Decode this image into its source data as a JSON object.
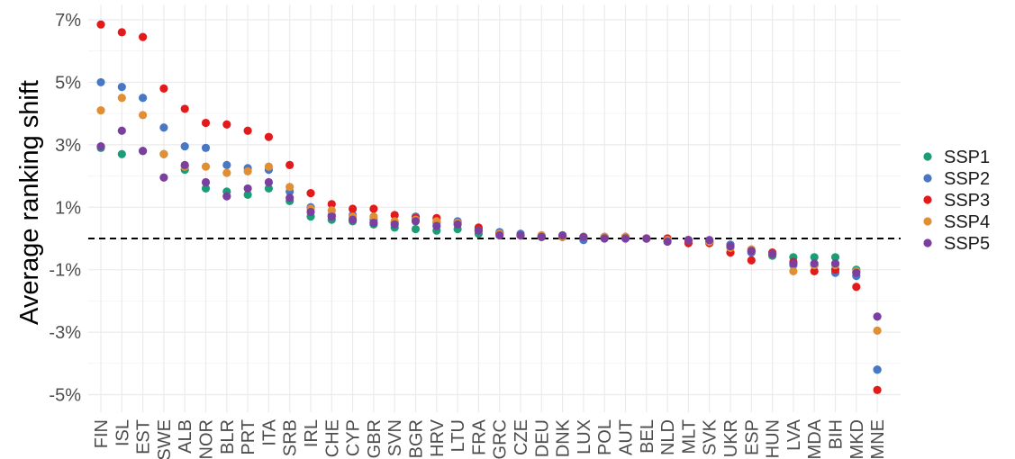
{
  "chart_data": {
    "type": "scatter",
    "title": "",
    "xlabel": "",
    "ylabel": "Average ranking shift",
    "ylim": [
      -5.6,
      7.0
    ],
    "yticks": [
      "7%",
      "5%",
      "3%",
      "1%",
      "-1%",
      "-3%",
      "-5%"
    ],
    "ytick_values": [
      7,
      5,
      3,
      1,
      -1,
      -3,
      -5
    ],
    "grid": true,
    "reference_line": {
      "y": 0,
      "style": "dashed"
    },
    "legend_position": "right",
    "categories": [
      "FIN",
      "ISL",
      "EST",
      "SWE",
      "ALB",
      "NOR",
      "BLR",
      "PRT",
      "ITA",
      "SRB",
      "IRL",
      "CHE",
      "CYP",
      "GBR",
      "SVN",
      "BGR",
      "HRV",
      "LTU",
      "FRA",
      "GRC",
      "CZE",
      "DEU",
      "DNK",
      "LUX",
      "POL",
      "AUT",
      "BEL",
      "NLD",
      "MLT",
      "SVK",
      "UKR",
      "ESP",
      "HUN",
      "LVA",
      "MDA",
      "BIH",
      "MKD",
      "MNE"
    ],
    "series": [
      {
        "name": "SSP1",
        "color": "#1b9e77",
        "values": [
          2.9,
          2.7,
          2.8,
          2.7,
          2.2,
          1.6,
          1.5,
          1.4,
          1.6,
          1.2,
          0.7,
          0.6,
          0.55,
          0.45,
          0.35,
          0.3,
          0.25,
          0.3,
          0.15,
          0.2,
          0.1,
          0.05,
          0.05,
          0.05,
          0.05,
          0.05,
          0.0,
          0.0,
          -0.05,
          -0.1,
          -0.2,
          -0.4,
          -0.55,
          -0.6,
          -0.6,
          -0.6,
          -1.0,
          -4.2
        ]
      },
      {
        "name": "SSP2",
        "color": "#4a77c4",
        "values": [
          5.0,
          4.85,
          4.5,
          3.55,
          2.95,
          2.9,
          2.35,
          2.25,
          2.2,
          1.5,
          1.0,
          0.75,
          0.75,
          0.6,
          0.5,
          0.7,
          0.5,
          0.55,
          0.3,
          0.2,
          0.15,
          0.1,
          0.1,
          -0.05,
          0.05,
          0.05,
          0.0,
          -0.05,
          -0.05,
          -0.1,
          -0.2,
          -0.45,
          -0.5,
          -0.85,
          -0.85,
          -1.1,
          -1.2,
          -4.2
        ]
      },
      {
        "name": "SSP3",
        "color": "#e31a1c",
        "values": [
          6.85,
          6.6,
          6.45,
          4.8,
          4.15,
          3.7,
          3.65,
          3.45,
          3.25,
          2.35,
          1.45,
          1.1,
          0.95,
          0.95,
          0.75,
          0.65,
          0.65,
          0.5,
          0.35,
          0.15,
          0.1,
          0.05,
          0.05,
          0.05,
          0.05,
          0.05,
          0.0,
          0.0,
          -0.15,
          -0.15,
          -0.45,
          -0.7,
          -0.45,
          -0.75,
          -1.05,
          -1.0,
          -1.55,
          -4.85
        ]
      },
      {
        "name": "SSP4",
        "color": "#e08f35",
        "values": [
          4.1,
          4.5,
          3.95,
          2.7,
          2.3,
          2.3,
          2.1,
          2.15,
          2.3,
          1.65,
          0.95,
          0.9,
          0.7,
          0.7,
          0.55,
          0.6,
          0.55,
          0.5,
          0.25,
          0.15,
          0.1,
          0.1,
          0.05,
          0.05,
          0.05,
          0.05,
          0.0,
          -0.05,
          -0.05,
          -0.1,
          -0.3,
          -0.35,
          -0.5,
          -1.05,
          -0.85,
          -0.85,
          -1.05,
          -2.95
        ]
      },
      {
        "name": "SSP5",
        "color": "#7b3fa0",
        "values": [
          2.95,
          3.45,
          2.8,
          1.95,
          2.35,
          1.8,
          1.35,
          1.6,
          1.8,
          1.3,
          0.85,
          0.7,
          0.6,
          0.5,
          0.45,
          0.55,
          0.4,
          0.45,
          0.25,
          0.1,
          0.1,
          0.05,
          0.1,
          0.05,
          0.0,
          0.0,
          0.0,
          -0.1,
          -0.05,
          -0.05,
          -0.25,
          -0.4,
          -0.5,
          -0.8,
          -0.8,
          -0.8,
          -1.1,
          -2.5
        ]
      }
    ]
  }
}
